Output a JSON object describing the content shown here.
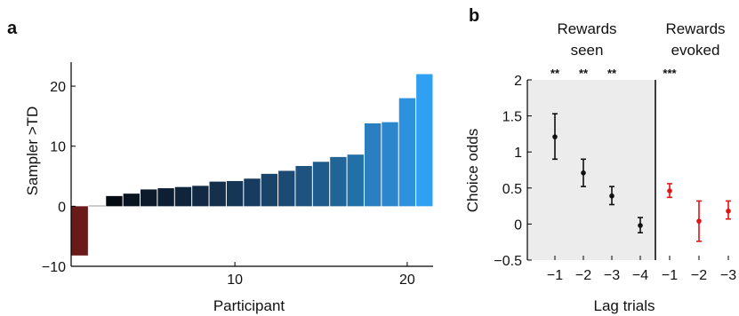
{
  "chart_data": [
    {
      "type": "bar",
      "panel_label": "a",
      "xlabel": "Participant",
      "ylabel": "Sampler >TD",
      "ylim": [
        -10,
        24
      ],
      "yticks": [
        -10,
        0,
        10,
        20
      ],
      "xticks": [
        10,
        20
      ],
      "xlim": [
        0.5,
        21.5
      ],
      "grid": false,
      "x": [
        1,
        2,
        3,
        4,
        5,
        6,
        7,
        8,
        9,
        10,
        11,
        12,
        13,
        14,
        15,
        16,
        17,
        18,
        19,
        20,
        21
      ],
      "values": [
        -8.2,
        0.1,
        1.7,
        2.1,
        2.8,
        3.0,
        3.2,
        3.4,
        4.1,
        4.2,
        4.6,
        5.4,
        5.9,
        6.7,
        7.4,
        8.2,
        8.6,
        13.8,
        14.0,
        18.0,
        22.0
      ],
      "colors": [
        "#6b1a1a",
        "#ffffff",
        "#060b12",
        "#0a1522",
        "#0c1a2b",
        "#0e1f33",
        "#10243b",
        "#122a44",
        "#14304d",
        "#163656",
        "#183c5f",
        "#1a4369",
        "#1c4a74",
        "#1e527f",
        "#1f5b8c",
        "#216497",
        "#2270a8",
        "#2a7fc0",
        "#2c86cc",
        "#2d92de",
        "#2fa0f2"
      ]
    },
    {
      "type": "scatter",
      "panel_label": "b",
      "xlabel": "Lag trials",
      "ylabel": "Choice odds",
      "ylim": [
        -0.5,
        2
      ],
      "yticks": [
        "−0.5",
        "0",
        "0.5",
        "1",
        "1.5",
        "2"
      ],
      "grid": false,
      "groups": [
        {
          "label_line1": "Rewards",
          "label_line2": "seen",
          "color": "#111111",
          "shaded": true,
          "x": [
            -1,
            -2,
            -3,
            -4
          ],
          "x_tick_labels": [
            "−1",
            "−2",
            "−3",
            "−4"
          ],
          "y": [
            1.21,
            0.71,
            0.39,
            -0.02
          ],
          "err_low": [
            0.9,
            0.52,
            0.27,
            -0.12
          ],
          "err_high": [
            1.53,
            0.9,
            0.52,
            0.09
          ],
          "significance": [
            "**",
            "**",
            "**",
            ""
          ]
        },
        {
          "label_line1": "Rewards",
          "label_line2": "evoked",
          "color": "#e01515",
          "shaded": false,
          "x": [
            -1,
            -2,
            -3
          ],
          "x_tick_labels": [
            "−1",
            "−2",
            "−3"
          ],
          "y": [
            0.46,
            0.04,
            0.18
          ],
          "err_low": [
            0.37,
            -0.24,
            0.07
          ],
          "err_high": [
            0.56,
            0.32,
            0.32
          ],
          "significance": [
            "***",
            "",
            ""
          ]
        }
      ]
    }
  ]
}
